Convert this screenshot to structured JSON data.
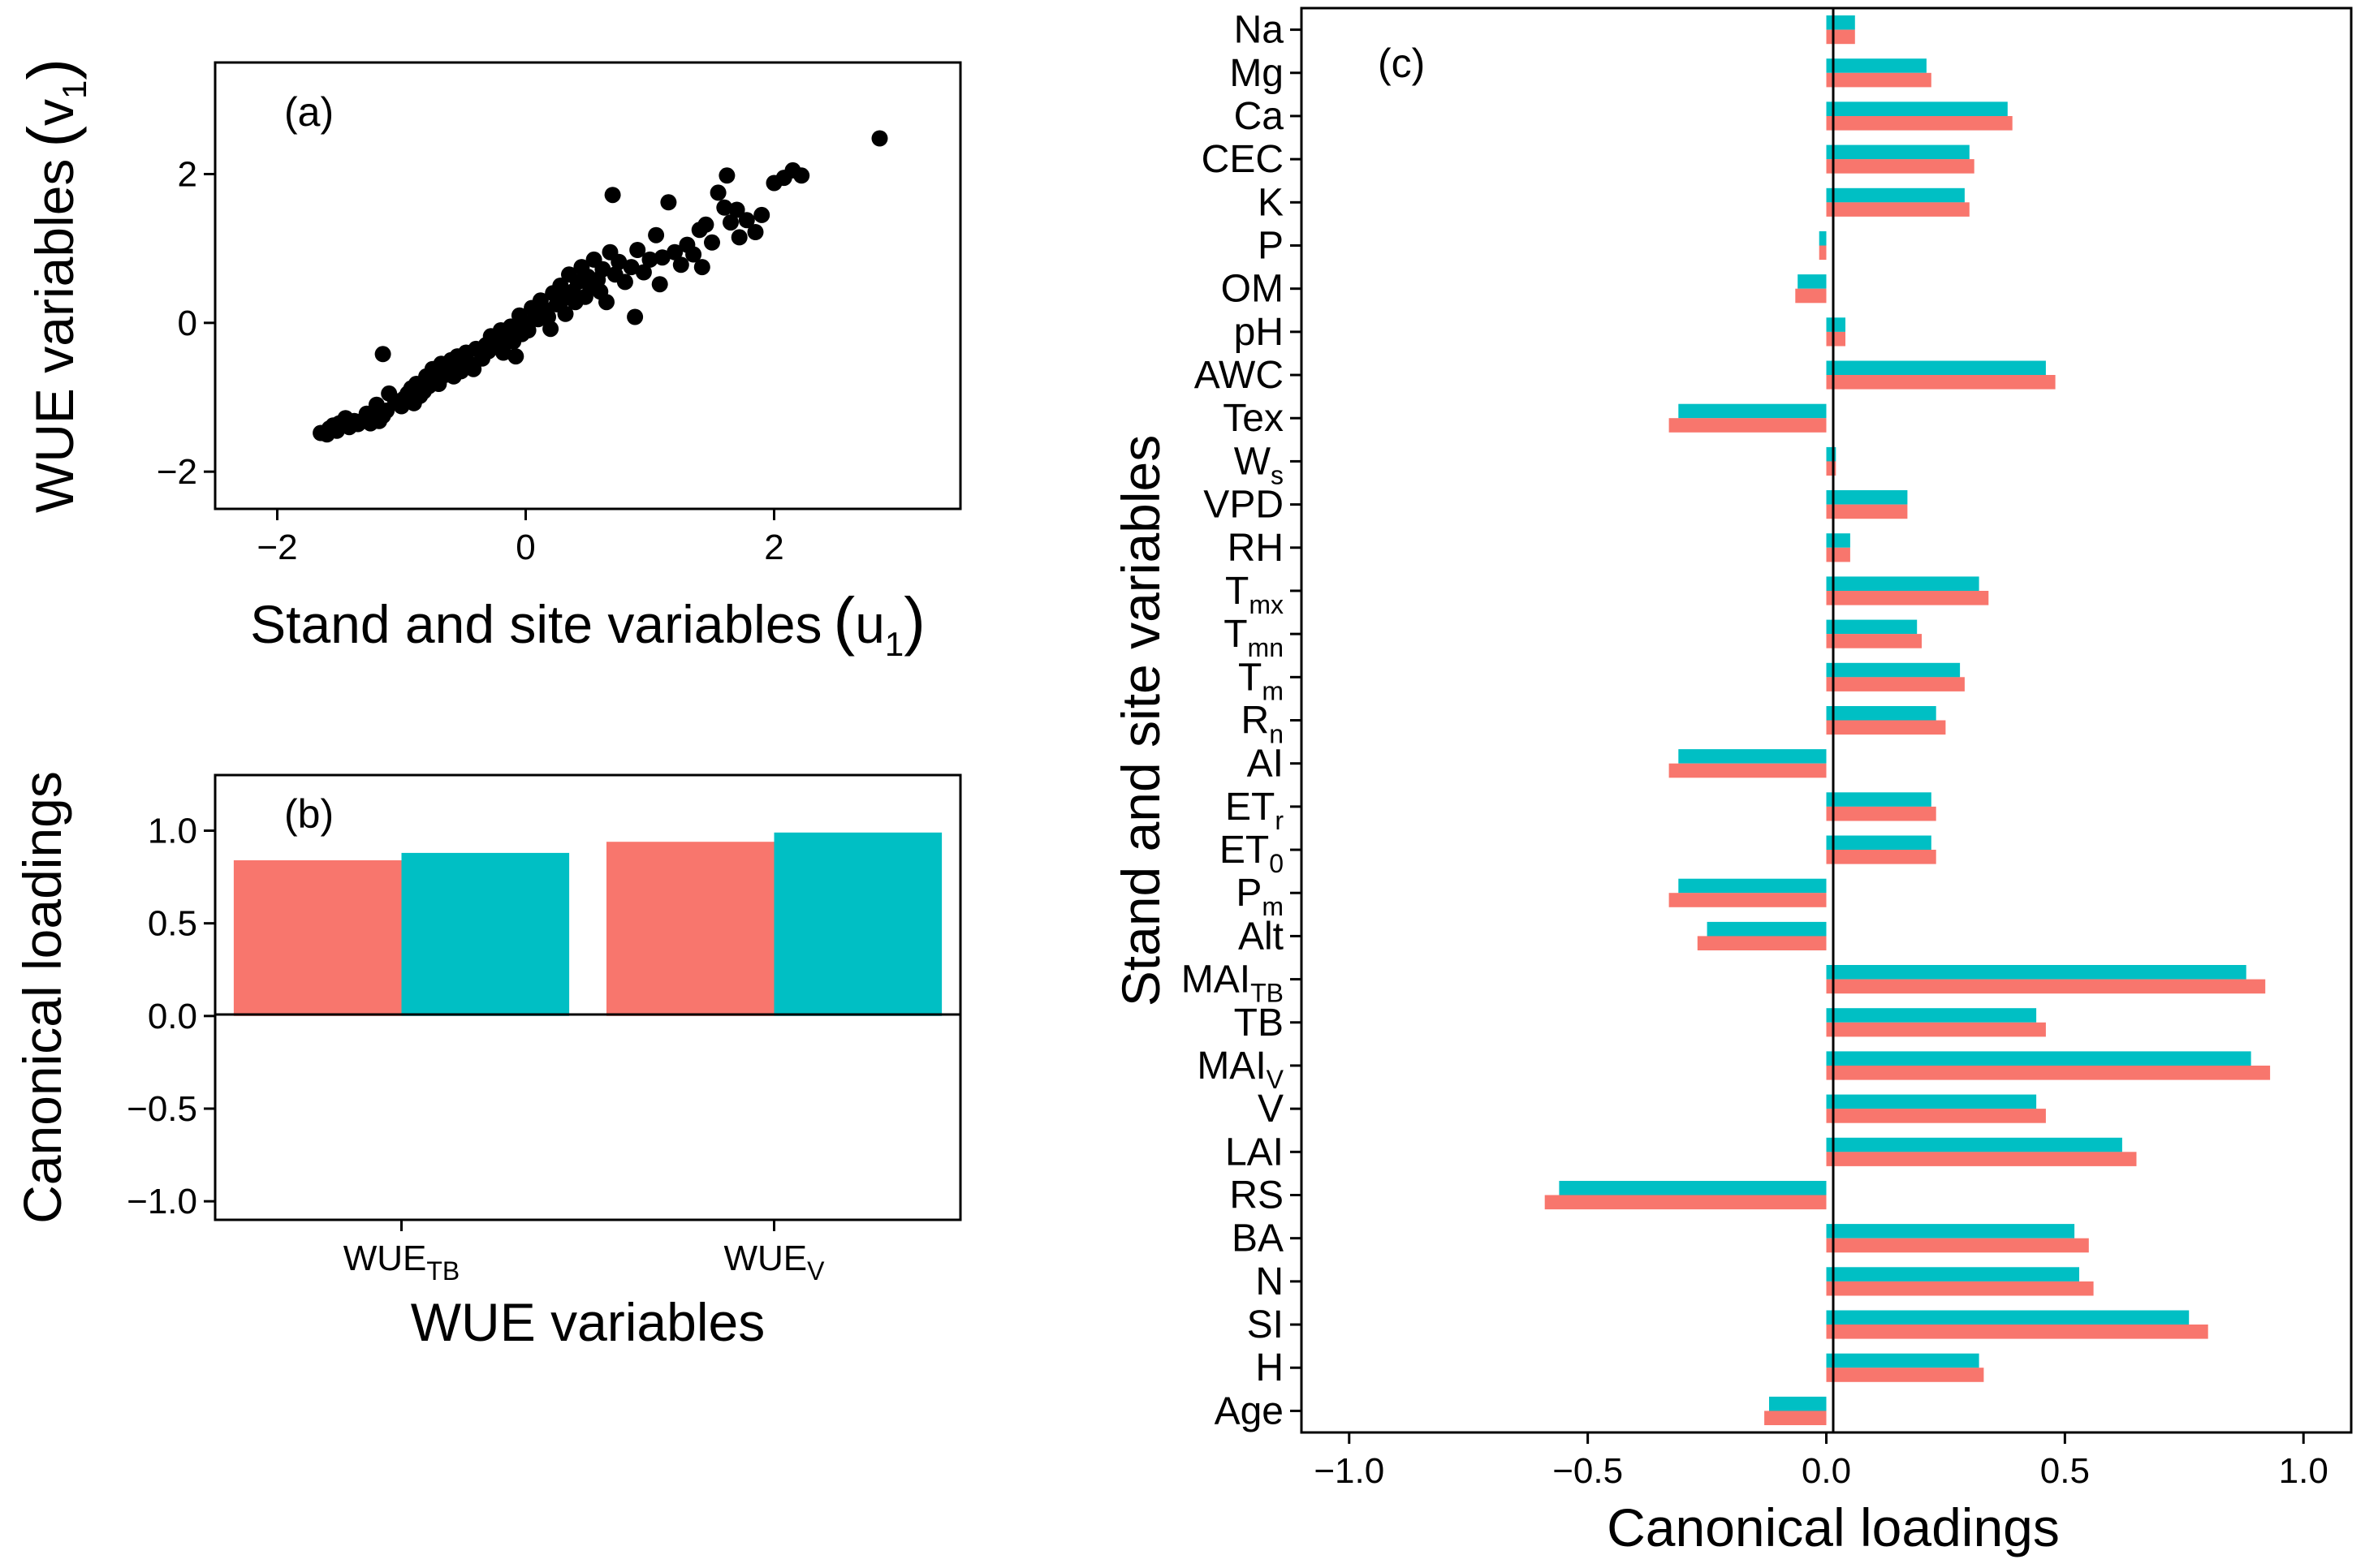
{
  "colors": {
    "series1": "#F8766D",
    "series2": "#00BFC4",
    "points": "#000000",
    "frame": "#000000"
  },
  "chart_data": [
    {
      "type": "scatter",
      "panel_label": "(a)",
      "xlabel": "Stand and site variables",
      "xlabel_sym": "u",
      "xlabel_sub": "1",
      "ylabel": "WUE variables",
      "ylabel_sym": "v",
      "ylabel_sub": "1",
      "xlim": [
        -2.5,
        3.5
      ],
      "ylim": [
        -2.5,
        3.5
      ],
      "xticks": [
        -2,
        0,
        2
      ],
      "yticks": [
        -2,
        0,
        2
      ],
      "xtick_labels": [
        "−2",
        "0",
        "2"
      ],
      "ytick_labels": [
        "−2",
        "0",
        "2"
      ],
      "points": [
        [
          -1.65,
          -1.48
        ],
        [
          -1.6,
          -1.5
        ],
        [
          -1.58,
          -1.42
        ],
        [
          -1.55,
          -1.38
        ],
        [
          -1.52,
          -1.45
        ],
        [
          -1.5,
          -1.35
        ],
        [
          -1.45,
          -1.28
        ],
        [
          -1.42,
          -1.4
        ],
        [
          -1.38,
          -1.32
        ],
        [
          -1.35,
          -1.36
        ],
        [
          -1.3,
          -1.3
        ],
        [
          -1.28,
          -1.22
        ],
        [
          -1.25,
          -1.35
        ],
        [
          -1.22,
          -1.28
        ],
        [
          -1.2,
          -1.1
        ],
        [
          -1.18,
          -1.32
        ],
        [
          -1.15,
          -1.25
        ],
        [
          -1.12,
          -1.18
        ],
        [
          -1.1,
          -0.95
        ],
        [
          -1.15,
          -0.42
        ],
        [
          -1.05,
          -1.05
        ],
        [
          -1.0,
          -1.12
        ],
        [
          -0.98,
          -1.02
        ],
        [
          -0.95,
          -0.95
        ],
        [
          -0.92,
          -0.88
        ],
        [
          -0.9,
          -1.08
        ],
        [
          -0.88,
          -0.82
        ],
        [
          -0.85,
          -0.98
        ],
        [
          -0.82,
          -0.92
        ],
        [
          -0.8,
          -0.72
        ],
        [
          -0.78,
          -0.85
        ],
        [
          -0.75,
          -0.62
        ],
        [
          -0.72,
          -0.78
        ],
        [
          -0.7,
          -0.82
        ],
        [
          -0.68,
          -0.55
        ],
        [
          -0.65,
          -0.7
        ],
        [
          -0.62,
          -0.6
        ],
        [
          -0.6,
          -0.5
        ],
        [
          -0.58,
          -0.72
        ],
        [
          -0.55,
          -0.45
        ],
        [
          -0.52,
          -0.65
        ],
        [
          -0.5,
          -0.58
        ],
        [
          -0.48,
          -0.4
        ],
        [
          -0.45,
          -0.55
        ],
        [
          -0.42,
          -0.62
        ],
        [
          -0.4,
          -0.35
        ],
        [
          -0.35,
          -0.48
        ],
        [
          -0.32,
          -0.3
        ],
        [
          -0.3,
          -0.38
        ],
        [
          -0.28,
          -0.18
        ],
        [
          -0.25,
          -0.3
        ],
        [
          -0.22,
          -0.22
        ],
        [
          -0.2,
          -0.1
        ],
        [
          -0.18,
          -0.4
        ],
        [
          -0.15,
          -0.2
        ],
        [
          -0.12,
          -0.05
        ],
        [
          -0.1,
          -0.25
        ],
        [
          -0.08,
          -0.45
        ],
        [
          -0.05,
          0.1
        ],
        [
          -0.03,
          -0.15
        ],
        [
          0.0,
          0.0
        ],
        [
          0.02,
          -0.1
        ],
        [
          0.05,
          0.2
        ],
        [
          0.08,
          0.12
        ],
        [
          0.1,
          0.05
        ],
        [
          0.12,
          0.3
        ],
        [
          0.15,
          0.18
        ],
        [
          0.18,
          0.08
        ],
        [
          0.2,
          -0.08
        ],
        [
          0.22,
          0.4
        ],
        [
          0.25,
          0.25
        ],
        [
          0.28,
          0.5
        ],
        [
          0.3,
          0.32
        ],
        [
          0.32,
          0.12
        ],
        [
          0.35,
          0.65
        ],
        [
          0.38,
          0.42
        ],
        [
          0.4,
          0.28
        ],
        [
          0.42,
          0.55
        ],
        [
          0.45,
          0.75
        ],
        [
          0.48,
          0.35
        ],
        [
          0.5,
          0.62
        ],
        [
          0.52,
          0.48
        ],
        [
          0.55,
          0.85
        ],
        [
          0.58,
          0.58
        ],
        [
          0.6,
          0.42
        ],
        [
          0.62,
          0.72
        ],
        [
          0.65,
          0.28
        ],
        [
          0.68,
          0.95
        ],
        [
          0.7,
          1.72
        ],
        [
          0.72,
          0.65
        ],
        [
          0.75,
          0.82
        ],
        [
          0.8,
          0.55
        ],
        [
          0.85,
          0.75
        ],
        [
          0.88,
          0.08
        ],
        [
          0.9,
          0.98
        ],
        [
          0.95,
          0.68
        ],
        [
          1.0,
          0.85
        ],
        [
          1.05,
          1.18
        ],
        [
          1.08,
          0.52
        ],
        [
          1.1,
          0.88
        ],
        [
          1.15,
          1.62
        ],
        [
          1.2,
          0.95
        ],
        [
          1.25,
          0.78
        ],
        [
          1.3,
          1.05
        ],
        [
          1.35,
          0.92
        ],
        [
          1.4,
          1.25
        ],
        [
          1.42,
          0.75
        ],
        [
          1.45,
          1.32
        ],
        [
          1.5,
          1.08
        ],
        [
          1.55,
          1.75
        ],
        [
          1.6,
          1.55
        ],
        [
          1.62,
          1.98
        ],
        [
          1.65,
          1.35
        ],
        [
          1.7,
          1.52
        ],
        [
          1.72,
          1.15
        ],
        [
          1.78,
          1.38
        ],
        [
          1.85,
          1.22
        ],
        [
          1.9,
          1.45
        ],
        [
          2.0,
          1.88
        ],
        [
          2.08,
          1.95
        ],
        [
          2.15,
          2.05
        ],
        [
          2.22,
          1.98
        ],
        [
          2.85,
          2.48
        ]
      ]
    },
    {
      "type": "bar",
      "panel_label": "(b)",
      "xlabel": "WUE variables",
      "ylabel": "Canonical loadings",
      "ylim": [
        -1.1,
        1.3
      ],
      "yticks": [
        -1.0,
        -0.5,
        0.0,
        0.5,
        1.0
      ],
      "ytick_labels": [
        "−1.0",
        "−0.5",
        "0.0",
        "0.5",
        "1.0"
      ],
      "categories": [
        {
          "base": "WUE",
          "sub": "TB"
        },
        {
          "base": "WUE",
          "sub": "V"
        }
      ],
      "series": [
        {
          "name": "series1",
          "values": [
            0.84,
            0.94
          ]
        },
        {
          "name": "series2",
          "values": [
            0.88,
            0.99
          ]
        }
      ]
    },
    {
      "type": "horizontal_bar",
      "panel_label": "(c)",
      "xlabel": "Canonical loadings",
      "ylabel": "Stand and site variables",
      "xlim": [
        -1.1,
        1.1
      ],
      "xticks": [
        -1.0,
        -0.5,
        0.0,
        0.5,
        1.0
      ],
      "xtick_labels": [
        "−1.0",
        "−0.5",
        "0.0",
        "0.5",
        "1.0"
      ],
      "categories": [
        {
          "base": "Na",
          "sub": ""
        },
        {
          "base": "Mg",
          "sub": ""
        },
        {
          "base": "Ca",
          "sub": ""
        },
        {
          "base": "CEC",
          "sub": ""
        },
        {
          "base": "K",
          "sub": ""
        },
        {
          "base": "P",
          "sub": ""
        },
        {
          "base": "OM",
          "sub": ""
        },
        {
          "base": "pH",
          "sub": ""
        },
        {
          "base": "AWC",
          "sub": ""
        },
        {
          "base": "Tex",
          "sub": ""
        },
        {
          "base": "W",
          "sub": "s"
        },
        {
          "base": "VPD",
          "sub": ""
        },
        {
          "base": "RH",
          "sub": ""
        },
        {
          "base": "T",
          "sub": "mx"
        },
        {
          "base": "T",
          "sub": "mn"
        },
        {
          "base": "T",
          "sub": "m"
        },
        {
          "base": "R",
          "sub": "n"
        },
        {
          "base": "AI",
          "sub": ""
        },
        {
          "base": "ET",
          "sub": "r"
        },
        {
          "base": "ET",
          "sub": "0"
        },
        {
          "base": "P",
          "sub": "m"
        },
        {
          "base": "Alt",
          "sub": ""
        },
        {
          "base": "MAI",
          "sub": "TB"
        },
        {
          "base": "TB",
          "sub": ""
        },
        {
          "base": "MAI",
          "sub": "V"
        },
        {
          "base": "V",
          "sub": ""
        },
        {
          "base": "LAI",
          "sub": ""
        },
        {
          "base": "RS",
          "sub": ""
        },
        {
          "base": "BA",
          "sub": ""
        },
        {
          "base": "N",
          "sub": ""
        },
        {
          "base": "SI",
          "sub": ""
        },
        {
          "base": "H",
          "sub": ""
        },
        {
          "base": "Age",
          "sub": ""
        }
      ],
      "series": [
        {
          "name": "series2",
          "values": [
            0.06,
            0.21,
            0.38,
            0.3,
            0.29,
            -0.015,
            -0.06,
            0.04,
            0.46,
            -0.31,
            0.02,
            0.17,
            0.05,
            0.32,
            0.19,
            0.28,
            0.23,
            -0.31,
            0.22,
            0.22,
            -0.31,
            -0.25,
            0.88,
            0.44,
            0.89,
            0.44,
            0.62,
            -0.56,
            0.52,
            0.53,
            0.76,
            0.32,
            -0.12
          ]
        },
        {
          "name": "series1",
          "values": [
            0.06,
            0.22,
            0.39,
            0.31,
            0.3,
            -0.015,
            -0.065,
            0.04,
            0.48,
            -0.33,
            0.02,
            0.17,
            0.05,
            0.34,
            0.2,
            0.29,
            0.25,
            -0.33,
            0.23,
            0.23,
            -0.33,
            -0.27,
            0.92,
            0.46,
            0.93,
            0.46,
            0.65,
            -0.59,
            0.55,
            0.56,
            0.8,
            0.33,
            -0.13
          ]
        }
      ]
    }
  ]
}
